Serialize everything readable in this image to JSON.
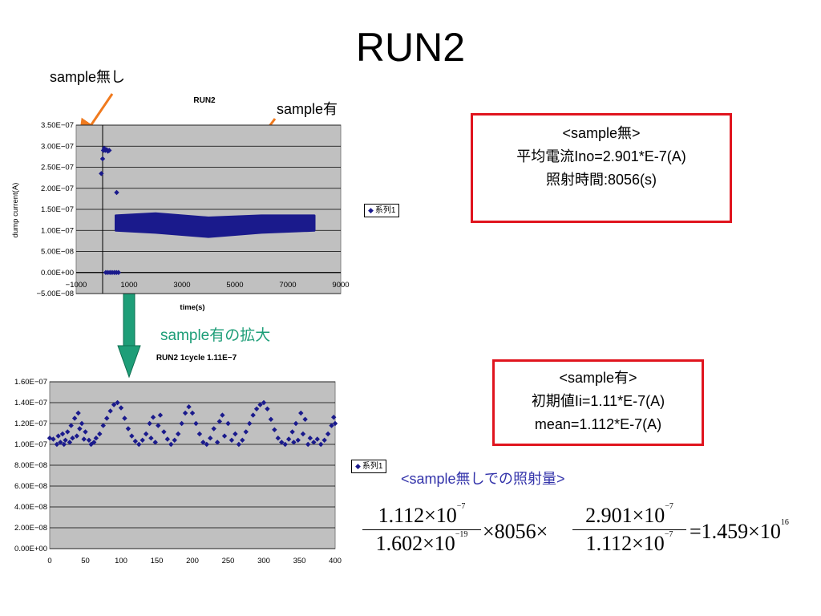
{
  "slide": {
    "title": "RUN2",
    "annotations": {
      "no_sample": "sample無し",
      "with_sample": "sample有",
      "zoom": "sample有の拡大",
      "dose_heading": "<sample無しでの照射量>"
    },
    "box_no_sample": {
      "line1": "<sample無>",
      "line2": "平均電流Ino=2.901*E-7(A)",
      "line3": "照射時間:8056(s)"
    },
    "box_with_sample": {
      "line1": "<sample有>",
      "line2": "初期値Ii=1.11*E-7(A)",
      "line3": "mean=1.112*E-7(A)"
    },
    "formula": {
      "f1_num": "1.112×10",
      "f1_num_exp": "−7",
      "f1_den": "1.602×10",
      "f1_den_exp": "−19",
      "mult1": "×8056×",
      "f2_num": "2.901×10",
      "f2_num_exp": "−7",
      "f2_den": "1.112×10",
      "f2_den_exp": "−7",
      "result": "=1.459×10",
      "result_exp": "16"
    },
    "colors": {
      "marker": "#1a1a8c",
      "plot_bg": "#c0c0c0",
      "box_border": "#e0141e",
      "orange_arrow": "#f07a1e",
      "green_arrow": "#1e9e78",
      "zoom_text": "#1e9e78",
      "dose_text": "#3333aa"
    }
  },
  "chart_data": [
    {
      "type": "scatter",
      "title": "RUN2",
      "xlabel": "time(s)",
      "ylabel": "dump current(A)",
      "xlim": [
        -1000,
        9000
      ],
      "ylim": [
        -5e-08,
        3.5e-07
      ],
      "x_ticks": [
        -1000,
        1000,
        3000,
        5000,
        7000,
        9000
      ],
      "x_tick_labels": [
        "−1000",
        "1000",
        "3000",
        "5000",
        "7000",
        "9000"
      ],
      "y_ticks": [
        -5e-08,
        0,
        5e-08,
        1e-07,
        1.5e-07,
        2e-07,
        2.5e-07,
        3e-07,
        3.5e-07
      ],
      "y_tick_labels": [
        "−5.00E−08",
        "0.00E+00",
        "5.00E−08",
        "1.00E−07",
        "1.50E−07",
        "2.00E−07",
        "2.50E−07",
        "3.00E−07",
        "3.50E−07"
      ],
      "grid": true,
      "legend": "right",
      "series": [
        {
          "name": "系列1",
          "points": [
            [
              -50,
              2.35e-07
            ],
            [
              0,
              2.7e-07
            ],
            [
              30,
              2.9e-07
            ],
            [
              60,
              2.95e-07
            ],
            [
              100,
              2.9e-07
            ],
            [
              150,
              2.92e-07
            ],
            [
              200,
              2.88e-07
            ],
            [
              250,
              2.9e-07
            ],
            [
              120,
              0
            ],
            [
              200,
              0
            ],
            [
              280,
              0
            ],
            [
              360,
              0
            ],
            [
              440,
              0
            ],
            [
              520,
              0
            ],
            [
              600,
              0
            ],
            [
              530,
              1.9e-07
            ]
          ],
          "band": {
            "x_start": 500,
            "x_end": 8000,
            "lower": [
              [
                500,
                1e-07
              ],
              [
                2000,
                9.5e-08
              ],
              [
                4000,
                8.5e-08
              ],
              [
                6000,
                9.5e-08
              ],
              [
                8000,
                1e-07
              ]
            ],
            "upper": [
              [
                500,
                1.35e-07
              ],
              [
                2000,
                1.4e-07
              ],
              [
                4000,
                1.3e-07
              ],
              [
                6000,
                1.35e-07
              ],
              [
                8000,
                1.35e-07
              ]
            ]
          }
        }
      ]
    },
    {
      "type": "scatter",
      "title": "RUN2 1cycle 1.11E−7",
      "xlim": [
        0,
        400
      ],
      "ylim": [
        0,
        1.6e-07
      ],
      "x_ticks": [
        0,
        50,
        100,
        150,
        200,
        250,
        300,
        350,
        400
      ],
      "x_tick_labels": [
        "0",
        "50",
        "100",
        "150",
        "200",
        "250",
        "300",
        "350",
        "400"
      ],
      "y_ticks": [
        0,
        2e-08,
        4e-08,
        6e-08,
        8e-08,
        1e-07,
        1.2e-07,
        1.4e-07,
        1.6e-07
      ],
      "y_tick_labels": [
        "0.00E+00",
        "2.00E−08",
        "4.00E−08",
        "6.00E−08",
        "8.00E−08",
        "1.00E−07",
        "1.20E−07",
        "1.40E−07",
        "1.60E−07"
      ],
      "grid": true,
      "legend": "right",
      "series": [
        {
          "name": "系列1",
          "points": [
            [
              0,
              1.06e-07
            ],
            [
              5,
              1.05e-07
            ],
            [
              10,
              1e-07
            ],
            [
              12,
              1.08e-07
            ],
            [
              15,
              1.02e-07
            ],
            [
              18,
              1.1e-07
            ],
            [
              20,
              1e-07
            ],
            [
              22,
              1.04e-07
            ],
            [
              25,
              1.12e-07
            ],
            [
              28,
              1.02e-07
            ],
            [
              30,
              1.18e-07
            ],
            [
              32,
              1.06e-07
            ],
            [
              35,
              1.25e-07
            ],
            [
              38,
              1.08e-07
            ],
            [
              40,
              1.3e-07
            ],
            [
              42,
              1.15e-07
            ],
            [
              45,
              1.2e-07
            ],
            [
              48,
              1.05e-07
            ],
            [
              50,
              1.12e-07
            ],
            [
              55,
              1.04e-07
            ],
            [
              58,
              1e-07
            ],
            [
              62,
              1.02e-07
            ],
            [
              65,
              1.06e-07
            ],
            [
              70,
              1.1e-07
            ],
            [
              75,
              1.18e-07
            ],
            [
              80,
              1.25e-07
            ],
            [
              85,
              1.32e-07
            ],
            [
              90,
              1.38e-07
            ],
            [
              95,
              1.4e-07
            ],
            [
              100,
              1.35e-07
            ],
            [
              105,
              1.25e-07
            ],
            [
              110,
              1.15e-07
            ],
            [
              115,
              1.08e-07
            ],
            [
              120,
              1.03e-07
            ],
            [
              125,
              1e-07
            ],
            [
              130,
              1.04e-07
            ],
            [
              135,
              1.1e-07
            ],
            [
              140,
              1.2e-07
            ],
            [
              142,
              1.06e-07
            ],
            [
              145,
              1.26e-07
            ],
            [
              148,
              1.02e-07
            ],
            [
              152,
              1.18e-07
            ],
            [
              155,
              1.28e-07
            ],
            [
              160,
              1.12e-07
            ],
            [
              165,
              1.05e-07
            ],
            [
              170,
              1e-07
            ],
            [
              175,
              1.04e-07
            ],
            [
              180,
              1.1e-07
            ],
            [
              185,
              1.2e-07
            ],
            [
              190,
              1.3e-07
            ],
            [
              195,
              1.36e-07
            ],
            [
              200,
              1.3e-07
            ],
            [
              205,
              1.2e-07
            ],
            [
              210,
              1.1e-07
            ],
            [
              215,
              1.02e-07
            ],
            [
              220,
              1e-07
            ],
            [
              225,
              1.06e-07
            ],
            [
              230,
              1.15e-07
            ],
            [
              235,
              1.02e-07
            ],
            [
              238,
              1.22e-07
            ],
            [
              242,
              1.28e-07
            ],
            [
              245,
              1.08e-07
            ],
            [
              250,
              1.2e-07
            ],
            [
              255,
              1.04e-07
            ],
            [
              260,
              1.1e-07
            ],
            [
              265,
              1e-07
            ],
            [
              270,
              1.04e-07
            ],
            [
              275,
              1.12e-07
            ],
            [
              280,
              1.2e-07
            ],
            [
              285,
              1.28e-07
            ],
            [
              290,
              1.34e-07
            ],
            [
              295,
              1.38e-07
            ],
            [
              300,
              1.4e-07
            ],
            [
              305,
              1.34e-07
            ],
            [
              310,
              1.24e-07
            ],
            [
              315,
              1.14e-07
            ],
            [
              320,
              1.06e-07
            ],
            [
              325,
              1.02e-07
            ],
            [
              330,
              1e-07
            ],
            [
              335,
              1.05e-07
            ],
            [
              340,
              1.12e-07
            ],
            [
              342,
              1.02e-07
            ],
            [
              345,
              1.2e-07
            ],
            [
              348,
              1.04e-07
            ],
            [
              352,
              1.3e-07
            ],
            [
              355,
              1.1e-07
            ],
            [
              358,
              1.24e-07
            ],
            [
              362,
              1e-07
            ],
            [
              365,
              1.06e-07
            ],
            [
              370,
              1.02e-07
            ],
            [
              375,
              1.05e-07
            ],
            [
              380,
              1e-07
            ],
            [
              385,
              1.04e-07
            ],
            [
              390,
              1.1e-07
            ],
            [
              395,
              1.18e-07
            ],
            [
              398,
              1.26e-07
            ],
            [
              400,
              1.2e-07
            ]
          ]
        }
      ]
    }
  ]
}
